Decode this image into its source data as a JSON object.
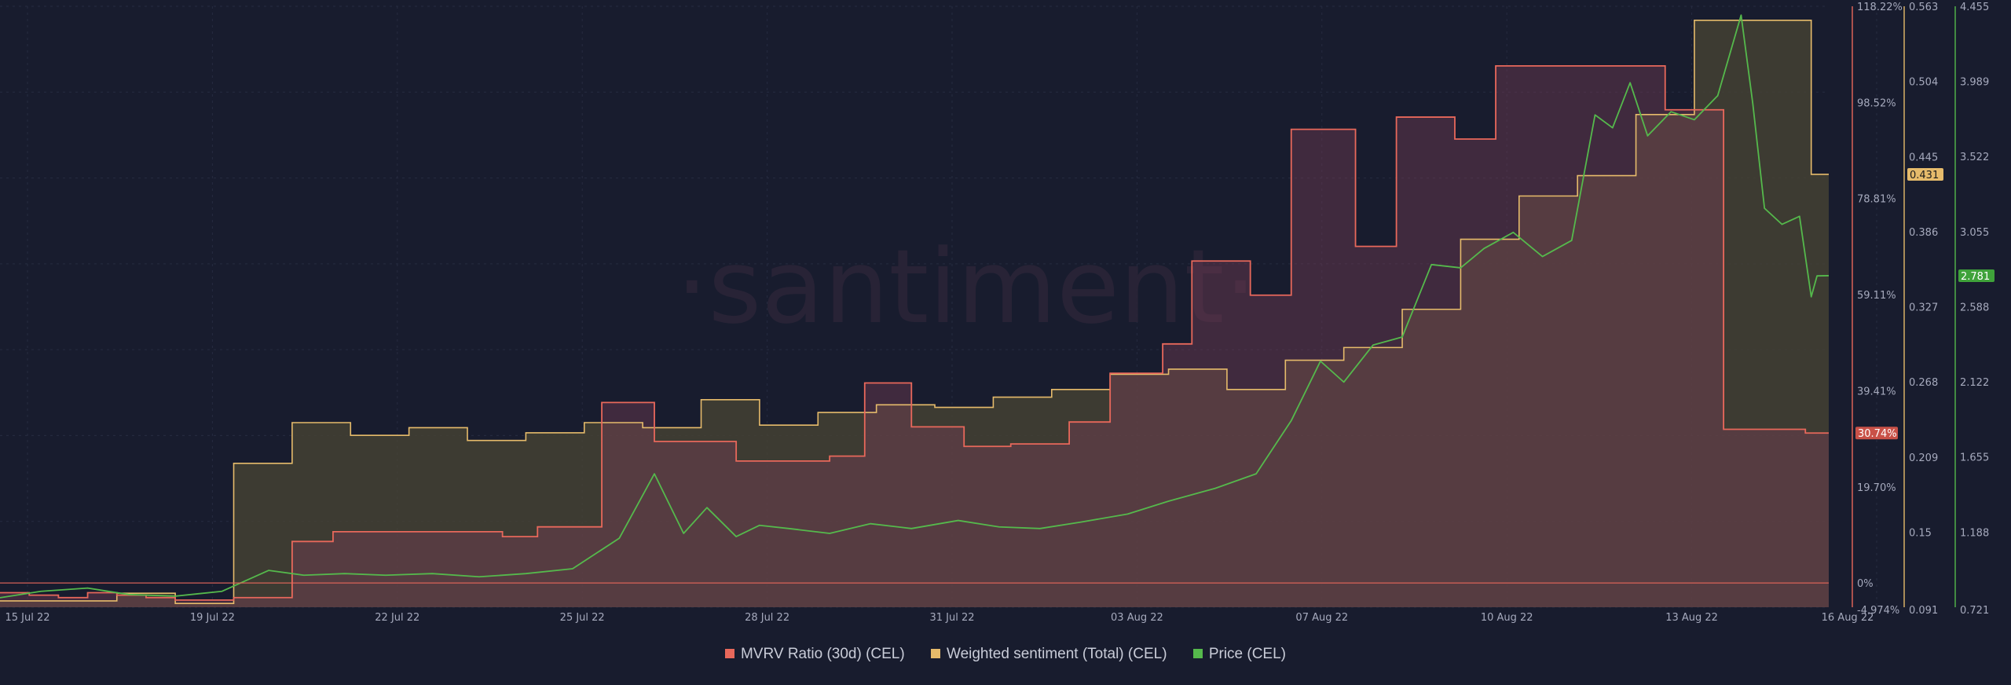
{
  "watermark": "·santiment·",
  "colors": {
    "background": "#181c2e",
    "mvrv": "#e8685b",
    "sentiment": "#e6bb6b",
    "price": "#55b94c",
    "axis_text": "#a6aabd",
    "grid": "#262b40"
  },
  "chart_data": {
    "type": "line",
    "x_ticks": [
      "15 Jul 22",
      "19 Jul 22",
      "22 Jul 22",
      "25 Jul 22",
      "28 Jul 22",
      "31 Jul 22",
      "03 Aug 22",
      "07 Aug 22",
      "10 Aug 22",
      "13 Aug 22",
      "16 Aug 22"
    ],
    "axes": {
      "mvrv": {
        "ticks": [
          "118.22%",
          "98.52%",
          "78.81%",
          "59.11%",
          "39.41%",
          "19.70%",
          "0%",
          "-4.974%"
        ],
        "range": [
          -4.974,
          118.22
        ],
        "current_label": "30.74%"
      },
      "sentiment": {
        "ticks": [
          "0.563",
          "0.504",
          "0.445",
          "0.386",
          "0.327",
          "0.268",
          "0.209",
          "0.15",
          "0.091"
        ],
        "range": [
          0.091,
          0.563
        ],
        "current_label": "0.431"
      },
      "price": {
        "ticks": [
          "4.455",
          "3.989",
          "3.522",
          "3.055",
          "2.588",
          "2.122",
          "1.655",
          "1.188",
          "0.721"
        ],
        "range": [
          0.721,
          4.455
        ],
        "current_label": "2.781"
      }
    },
    "series": [
      {
        "name": "MVRV Ratio (30d) (CEL)",
        "style": "step-area",
        "x": [
          0,
          0.5,
          1,
          1.5,
          2,
          2.5,
          3,
          4,
          5,
          5.7,
          6.6,
          7.5,
          8.6,
          9.2,
          10.3,
          11.2,
          11.8,
          12.6,
          13.3,
          14.2,
          14.8,
          15.6,
          16.5,
          17.3,
          18.3,
          19,
          19.9,
          20.4,
          21.4,
          22.1,
          23.2,
          23.9,
          24.9,
          25.6,
          26.5,
          27.5,
          28.5,
          29.5,
          30.2,
          30.9,
          31.3
        ],
        "values": [
          -2,
          -2.5,
          -3,
          -2,
          -2.5,
          -3,
          -3.5,
          -3,
          8.5,
          10.5,
          10.5,
          10.5,
          9.5,
          11.5,
          37,
          29,
          29,
          25,
          25,
          26,
          41,
          32,
          28,
          28.5,
          33,
          43,
          49,
          66,
          59,
          93,
          69,
          95.5,
          91,
          106,
          106,
          106,
          97,
          31.5,
          31.5,
          30.74,
          30.74
        ]
      },
      {
        "name": "Weighted sentiment (Total) (CEL)",
        "style": "step-area",
        "x": [
          0,
          1,
          2,
          3,
          4,
          5,
          6,
          7,
          8,
          9,
          10,
          11,
          12,
          13,
          14,
          15,
          16,
          17,
          18,
          19,
          20,
          21,
          22,
          23,
          24,
          25,
          26,
          27,
          28,
          29,
          30,
          31,
          31.3
        ],
        "values": [
          0.096,
          0.096,
          0.102,
          0.094,
          0.204,
          0.236,
          0.226,
          0.232,
          0.222,
          0.228,
          0.236,
          0.232,
          0.254,
          0.234,
          0.244,
          0.25,
          0.248,
          0.256,
          0.262,
          0.274,
          0.278,
          0.262,
          0.285,
          0.295,
          0.325,
          0.38,
          0.414,
          0.43,
          0.478,
          0.552,
          0.552,
          0.431,
          0.431
        ]
      },
      {
        "name": "Price (CEL)",
        "style": "line",
        "x": [
          0,
          0.7,
          1.5,
          2.2,
          3,
          3.8,
          4.6,
          5.2,
          5.9,
          6.6,
          7.4,
          8.2,
          9.0,
          9.8,
          10.6,
          11.2,
          11.7,
          12.1,
          12.6,
          13.0,
          13.5,
          14.2,
          14.9,
          15.6,
          16.4,
          17.1,
          17.8,
          18.5,
          19.3,
          20.0,
          20.8,
          21.5,
          22.1,
          22.6,
          23.0,
          23.5,
          24.0,
          24.5,
          25.0,
          25.4,
          25.9,
          26.4,
          26.9,
          27.3,
          27.6,
          27.9,
          28.2,
          28.6,
          29.0,
          29.4,
          29.8,
          30.0,
          30.2,
          30.5,
          30.8,
          31.0,
          31.1,
          31.3
        ],
        "values": [
          0.78,
          0.82,
          0.84,
          0.8,
          0.79,
          0.82,
          0.95,
          0.92,
          0.93,
          0.92,
          0.93,
          0.91,
          0.93,
          0.96,
          1.15,
          1.55,
          1.18,
          1.34,
          1.16,
          1.23,
          1.21,
          1.18,
          1.24,
          1.21,
          1.26,
          1.22,
          1.21,
          1.25,
          1.3,
          1.38,
          1.46,
          1.55,
          1.88,
          2.25,
          2.12,
          2.35,
          2.4,
          2.85,
          2.83,
          2.95,
          3.05,
          2.9,
          3.0,
          3.78,
          3.7,
          3.98,
          3.65,
          3.8,
          3.75,
          3.9,
          4.4,
          3.85,
          3.2,
          3.1,
          3.15,
          2.65,
          2.78,
          2.781
        ]
      }
    ],
    "legend_position": "bottom-center"
  },
  "legend": {
    "items": [
      {
        "label": "MVRV Ratio (30d) (CEL)",
        "color": "#e8685b"
      },
      {
        "label": "Weighted sentiment (Total) (CEL)",
        "color": "#e6bb6b"
      },
      {
        "label": "Price (CEL)",
        "color": "#55b94c"
      }
    ]
  }
}
